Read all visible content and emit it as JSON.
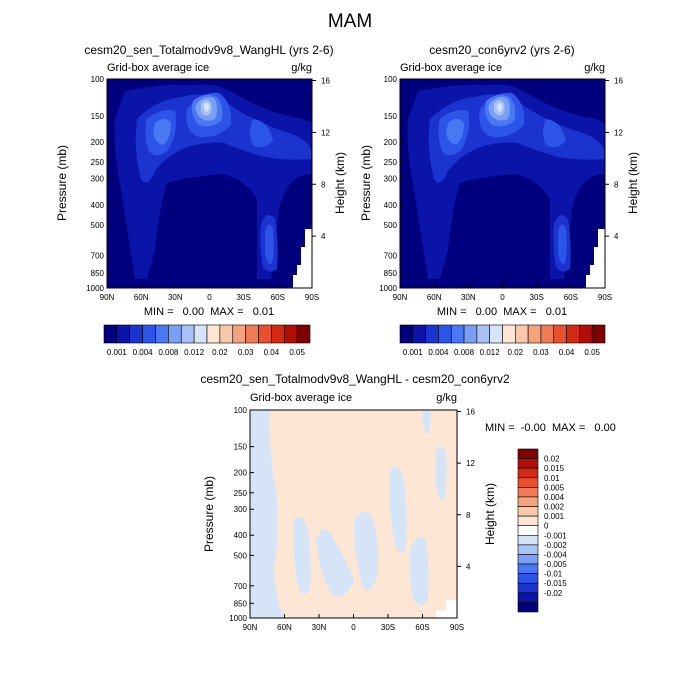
{
  "figure": {
    "title": "MAM"
  },
  "colors": {
    "positive_scale": [
      "#00007f",
      "#0a14a8",
      "#1c34cf",
      "#2d54e8",
      "#4a78f2",
      "#7b9ff5",
      "#a9c1f6",
      "#d6e4f8",
      "#fde6d4",
      "#f9c7a9",
      "#f5a27e",
      "#f07a55",
      "#e8502e",
      "#d42a12",
      "#b10f05",
      "#7f0000"
    ],
    "contour_fills": [
      "#00007f",
      "#0a14a8",
      "#1c34cf",
      "#2d54e8",
      "#4a78f2",
      "#7b9ff5",
      "#a9c1f6",
      "#d6e4f8"
    ],
    "diff_scale": [
      "#00007f",
      "#0a14a8",
      "#1c34cf",
      "#2d54e8",
      "#4a78f2",
      "#7b9ff5",
      "#a9c1f6",
      "#d6e4f8",
      "#ffffff",
      "#fde6d4",
      "#f9c7a9",
      "#f5a27e",
      "#f07a55",
      "#e8502e",
      "#d42a12",
      "#b10f05",
      "#7f0000"
    ]
  },
  "chart_data": [
    {
      "type": "heatmap",
      "id": "panel1",
      "title": "cesm20_sen_Totalmodv9v8_WangHL (yrs 2-6)",
      "subtitle_left": "Grid-box average ice",
      "subtitle_right": "g/kg",
      "xlabel": "",
      "ylabel": "Pressure (mb)",
      "ylabel_right": "Height (km)",
      "x_ticks": [
        "90N",
        "60N",
        "30N",
        "0",
        "30S",
        "60S",
        "90S"
      ],
      "y_ticks": [
        "100",
        "150",
        "200",
        "250",
        "300",
        "400",
        "500",
        "700",
        "850",
        "1000"
      ],
      "y_ticks_right": [
        "16",
        "12",
        "8",
        "4"
      ],
      "min_max": "MIN =   0.00  MAX =   0.01",
      "colorbar_labels": [
        "0.001",
        "0.004",
        "0.008",
        "0.012",
        "0.02",
        "0.03",
        "0.04",
        "0.05"
      ],
      "levels": [
        0.001,
        0.002,
        0.004,
        0.006,
        0.008,
        0.01,
        0.012,
        0.015,
        0.02,
        0.025,
        0.03,
        0.035,
        0.04,
        0.045,
        0.05
      ]
    },
    {
      "type": "heatmap",
      "id": "panel2",
      "title": "cesm20_con6yrv2 (yrs 2-6)",
      "subtitle_left": "Grid-box average ice",
      "subtitle_right": "g/kg",
      "xlabel": "",
      "ylabel": "Pressure (mb)",
      "ylabel_right": "Height (km)",
      "x_ticks": [
        "90N",
        "60N",
        "30N",
        "0",
        "30S",
        "60S",
        "90S"
      ],
      "y_ticks": [
        "100",
        "150",
        "200",
        "250",
        "300",
        "400",
        "500",
        "700",
        "850",
        "1000"
      ],
      "y_ticks_right": [
        "16",
        "12",
        "8",
        "4"
      ],
      "min_max": "MIN =   0.00  MAX =   0.01",
      "colorbar_labels": [
        "0.001",
        "0.004",
        "0.008",
        "0.012",
        "0.02",
        "0.03",
        "0.04",
        "0.05"
      ],
      "levels": [
        0.001,
        0.002,
        0.004,
        0.006,
        0.008,
        0.01,
        0.012,
        0.015,
        0.02,
        0.025,
        0.03,
        0.035,
        0.04,
        0.045,
        0.05
      ]
    },
    {
      "type": "heatmap",
      "id": "panel3",
      "title": "cesm20_sen_Totalmodv9v8_WangHL - cesm20_con6yrv2",
      "subtitle_left": "Grid-box average ice",
      "subtitle_right": "g/kg",
      "xlabel": "",
      "ylabel": "Pressure (mb)",
      "ylabel_right": "Height (km)",
      "x_ticks": [
        "90N",
        "60N",
        "30N",
        "0",
        "30S",
        "60S",
        "90S"
      ],
      "y_ticks": [
        "100",
        "150",
        "200",
        "250",
        "300",
        "400",
        "500",
        "700",
        "850",
        "1000"
      ],
      "y_ticks_right": [
        "16",
        "12",
        "8",
        "4"
      ],
      "min_max": "MIN =  -0.00  MAX =   0.00",
      "colorbar_labels": [
        "0.02",
        "0.015",
        "0.01",
        "0.005",
        "0.004",
        "0.002",
        "0.001",
        "0",
        "-0.001",
        "-0.002",
        "-0.004",
        "-0.005",
        "-0.01",
        "-0.015",
        "-0.02"
      ],
      "levels": [
        -0.02,
        -0.015,
        -0.01,
        -0.005,
        -0.004,
        -0.002,
        -0.001,
        0,
        0.001,
        0.002,
        0.004,
        0.005,
        0.01,
        0.015,
        0.02
      ]
    }
  ]
}
